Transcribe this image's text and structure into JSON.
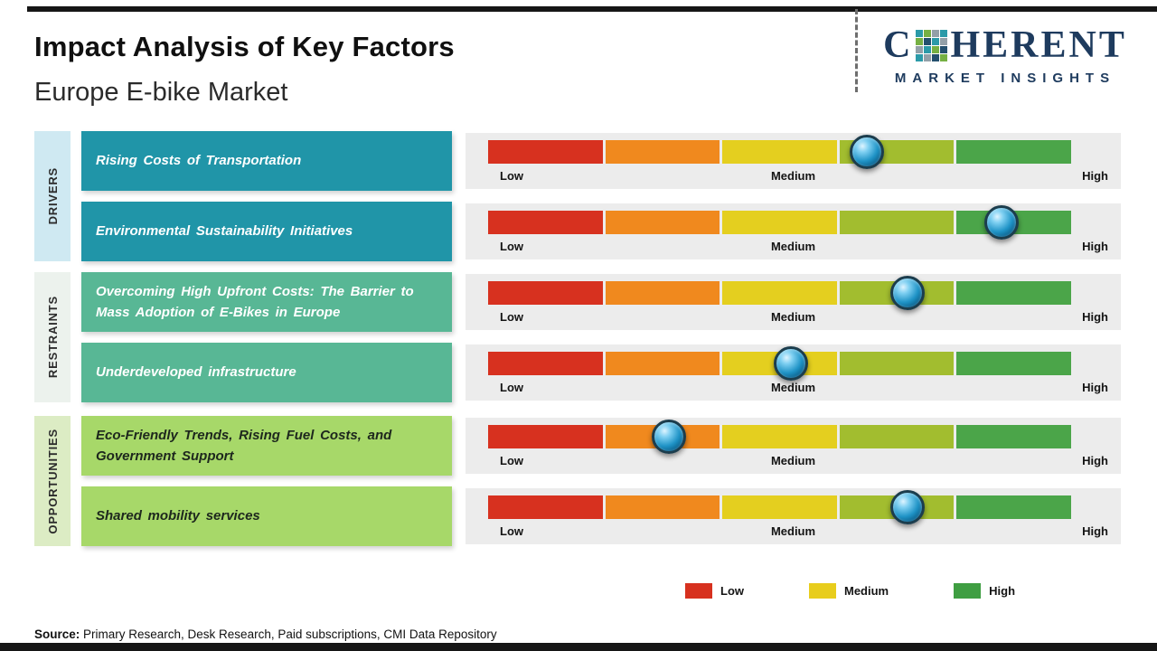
{
  "page": {
    "title": "Impact Analysis of Key Factors",
    "subtitle": "Europe E-bike Market"
  },
  "logo": {
    "brand_c": "C",
    "brand_rest": "HERENT",
    "tagline": "MARKET INSIGHTS"
  },
  "chart_data": {
    "type": "table",
    "title": "Impact Analysis of Key Factors - Europe E-bike Market",
    "scale": {
      "min_label": "Low",
      "mid_label": "Medium",
      "max_label": "High"
    },
    "segment_colors": [
      "#d7311f",
      "#f0891e",
      "#e4cf1f",
      "#a2bd2f",
      "#4ba549"
    ],
    "groups": [
      {
        "name": "DRIVERS",
        "strip_color": "#cfe9f2",
        "box_color": "#2095a8",
        "text_color": "#ffffff"
      },
      {
        "name": "RESTRAINTS",
        "strip_color": "#ecf2ed",
        "box_color": "#58b795",
        "text_color": "#ffffff"
      },
      {
        "name": "OPPORTUNITIES",
        "strip_color": "#dcecc4",
        "box_color": "#a7d869",
        "text_color": "#1d271d"
      }
    ],
    "rows": [
      {
        "group": "DRIVERS",
        "factor": "Rising Costs of Transportation",
        "impact_level": "Medium-High",
        "impact_pct": 65
      },
      {
        "group": "DRIVERS",
        "factor": "Environmental Sustainability Initiatives",
        "impact_level": "High",
        "impact_pct": 88
      },
      {
        "group": "RESTRAINTS",
        "factor": "Overcoming High Upfront Costs: The Barrier to Mass Adoption of E-Bikes in Europe",
        "impact_level": "Medium-High",
        "impact_pct": 72
      },
      {
        "group": "RESTRAINTS",
        "factor": "Underdeveloped infrastructure",
        "impact_level": "Medium",
        "impact_pct": 52
      },
      {
        "group": "OPPORTUNITIES",
        "factor": "Eco-Friendly Trends, Rising Fuel Costs, and Government Support",
        "impact_level": "Low-Medium",
        "impact_pct": 31
      },
      {
        "group": "OPPORTUNITIES",
        "factor": "Shared mobility services",
        "impact_level": "Medium-High",
        "impact_pct": 72
      }
    ]
  },
  "legend": {
    "items": [
      {
        "label": "Low",
        "color": "#d7311f"
      },
      {
        "label": "Medium",
        "color": "#e8cd1c"
      },
      {
        "label": "High",
        "color": "#3f9e42"
      }
    ]
  },
  "source": {
    "label": "Source:",
    "text": " Primary Research, Desk Research, Paid subscriptions, CMI Data Repository"
  }
}
